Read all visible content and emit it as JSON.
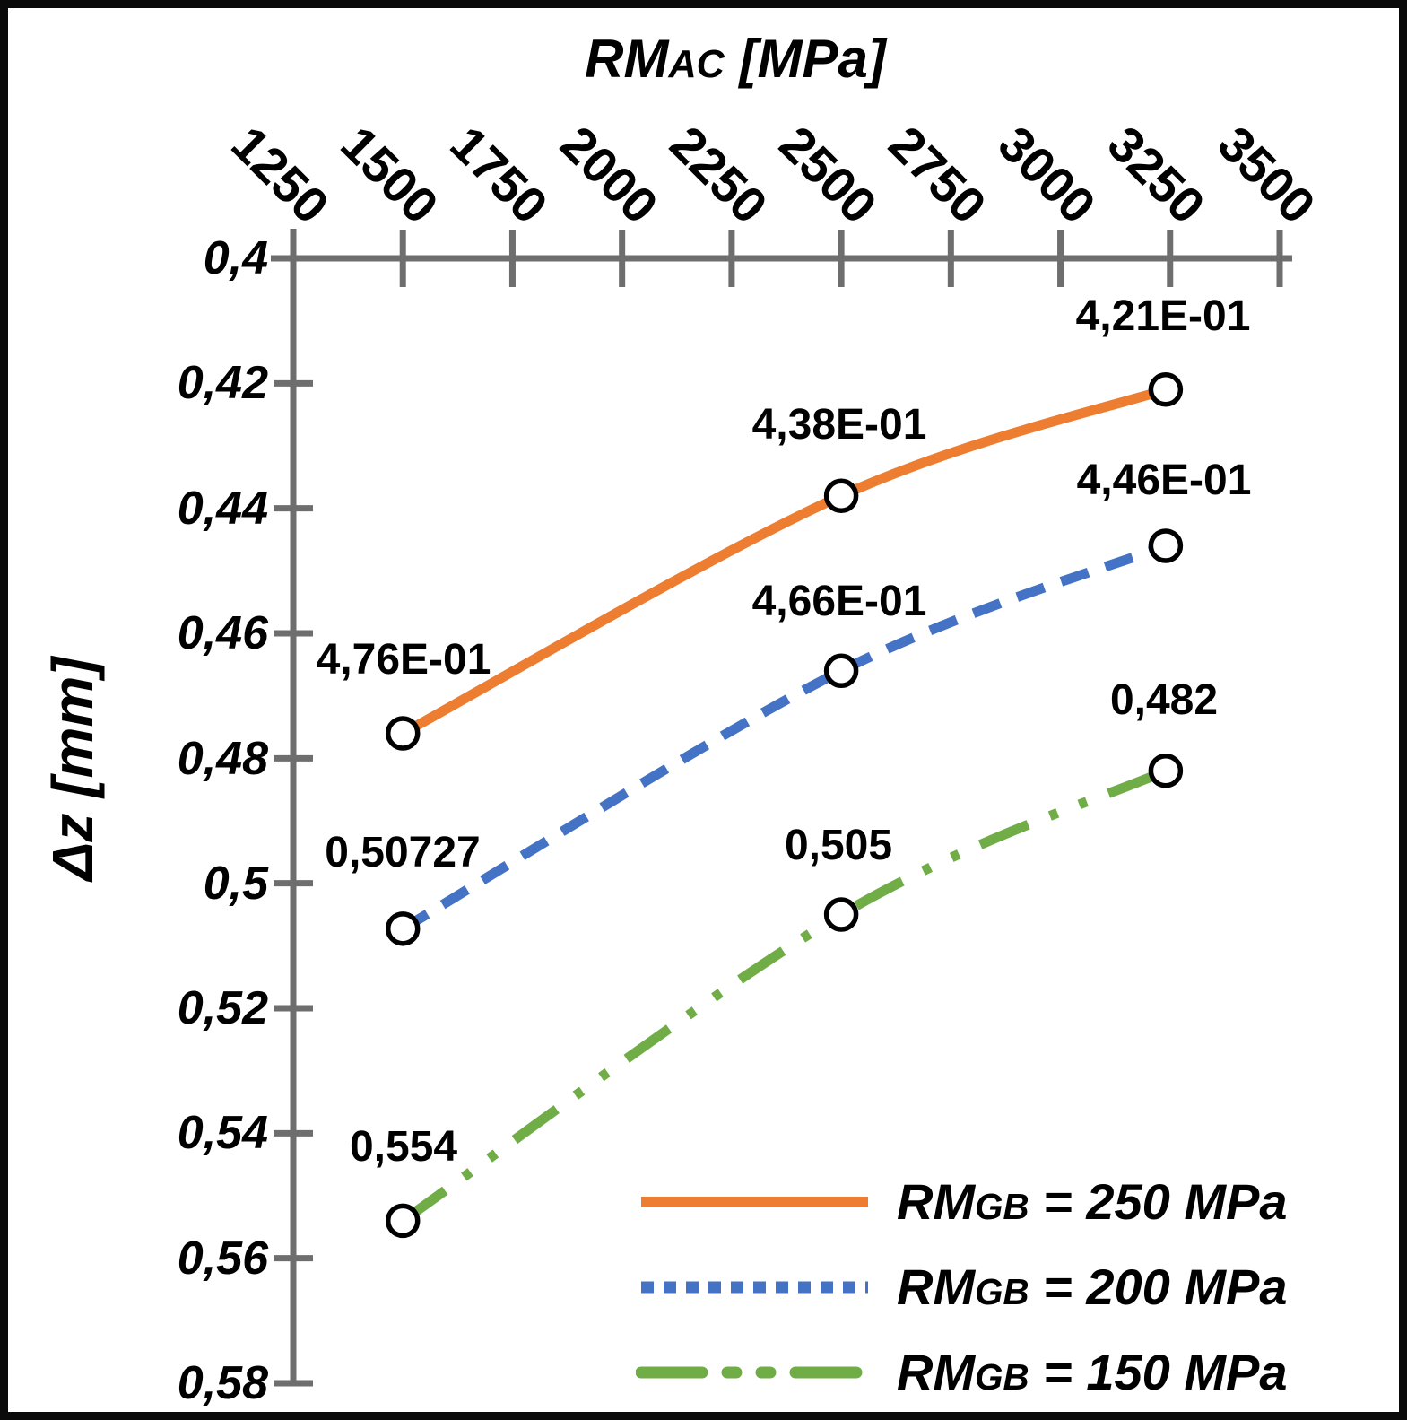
{
  "chart_data": {
    "type": "line",
    "title": {
      "prefix": "RM",
      "sub": "AC",
      "rest": " [MPa]"
    },
    "ylabel": "Δz [mm]",
    "x_axis": {
      "min": 1250,
      "max": 3500,
      "step": 250,
      "position": "top",
      "tick_labels": [
        "1250",
        "1500",
        "1750",
        "2000",
        "2250",
        "2500",
        "2750",
        "3000",
        "3250",
        "3500"
      ]
    },
    "y_axis": {
      "min": 0.4,
      "max": 0.58,
      "step": 0.02,
      "reversed": true,
      "tick_labels": [
        "0,4",
        "0,42",
        "0,44",
        "0,46",
        "0,48",
        "0,5",
        "0,52",
        "0,54",
        "0,56",
        "0,58"
      ]
    },
    "x": [
      1500,
      2500,
      3240
    ],
    "series": [
      {
        "name": {
          "prefix": "RM",
          "sub": "GB",
          "rest": " = 250 MPa"
        },
        "color": "#ED7D31",
        "style": "solid",
        "values": [
          0.476,
          0.438,
          0.421
        ],
        "point_labels": [
          "4,76E-01",
          "4,38E-01",
          "4,21E-01"
        ]
      },
      {
        "name": {
          "prefix": "RM",
          "sub": "GB",
          "rest": " = 200 MPa"
        },
        "color": "#4472C4",
        "style": "dashed",
        "values": [
          0.50727,
          0.466,
          0.446
        ],
        "point_labels": [
          "0,50727",
          "4,66E-01",
          "4,46E-01"
        ]
      },
      {
        "name": {
          "prefix": "RM",
          "sub": "GB",
          "rest": " = 150 MPa"
        },
        "color": "#70AD47",
        "style": "dash-dot-dot",
        "values": [
          0.554,
          0.505,
          0.482
        ],
        "point_labels": [
          "0,554",
          "0,505",
          "0,482"
        ]
      }
    ],
    "axis_color": "#6e6e6e",
    "marker": {
      "fill": "#ffffff",
      "stroke": "#000000"
    }
  }
}
